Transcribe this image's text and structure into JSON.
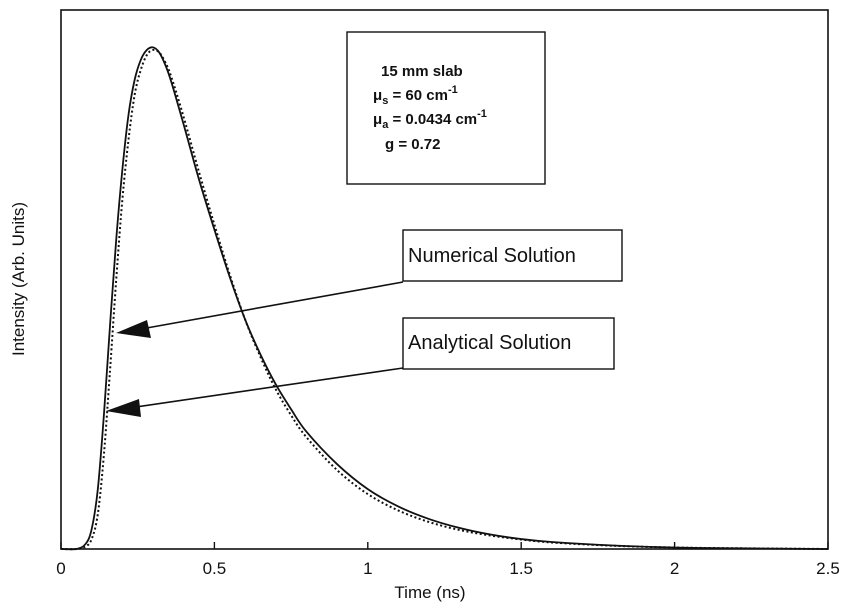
{
  "chart_data": {
    "type": "line",
    "xlabel": "Time (ns)",
    "ylabel": "Intensity (Arb. Units)",
    "xlim": [
      0,
      2.5
    ],
    "ylim": [
      0,
      1.08
    ],
    "x_ticks": [
      "0",
      "0.5",
      "1",
      "1.5",
      "2",
      "2.5"
    ],
    "grid": false,
    "series": [
      {
        "name": "Numerical Solution",
        "style": "solid",
        "x": [
          0,
          0.05,
          0.08,
          0.1,
          0.12,
          0.14,
          0.16,
          0.18,
          0.2,
          0.22,
          0.24,
          0.26,
          0.28,
          0.3,
          0.32,
          0.34,
          0.36,
          0.4,
          0.45,
          0.5,
          0.55,
          0.6,
          0.65,
          0.7,
          0.75,
          0.8,
          0.9,
          1.0,
          1.1,
          1.2,
          1.3,
          1.4,
          1.5,
          1.6,
          1.8,
          2.0,
          2.2,
          2.5
        ],
        "y": [
          0,
          0.0,
          0.01,
          0.04,
          0.12,
          0.27,
          0.45,
          0.62,
          0.76,
          0.87,
          0.94,
          0.98,
          1.0,
          1.005,
          0.995,
          0.97,
          0.935,
          0.85,
          0.74,
          0.64,
          0.545,
          0.46,
          0.39,
          0.33,
          0.28,
          0.235,
          0.17,
          0.12,
          0.085,
          0.06,
          0.042,
          0.029,
          0.02,
          0.014,
          0.007,
          0.003,
          0.0015,
          0.0
        ]
      },
      {
        "name": "Analytical Solution",
        "style": "dotted",
        "x": [
          0,
          0.05,
          0.08,
          0.1,
          0.12,
          0.14,
          0.16,
          0.18,
          0.2,
          0.22,
          0.24,
          0.26,
          0.28,
          0.3,
          0.32,
          0.34,
          0.36,
          0.4,
          0.45,
          0.5,
          0.55,
          0.6,
          0.65,
          0.7,
          0.75,
          0.8,
          0.9,
          1.0,
          1.1,
          1.2,
          1.3,
          1.4,
          1.5,
          1.6,
          1.8,
          2.0,
          2.2,
          2.5
        ],
        "y": [
          0,
          0.0,
          0.005,
          0.02,
          0.07,
          0.19,
          0.36,
          0.54,
          0.7,
          0.82,
          0.91,
          0.96,
          0.99,
          1.0,
          0.995,
          0.975,
          0.945,
          0.865,
          0.755,
          0.65,
          0.55,
          0.46,
          0.385,
          0.32,
          0.268,
          0.224,
          0.158,
          0.11,
          0.077,
          0.054,
          0.038,
          0.027,
          0.019,
          0.013,
          0.0065,
          0.003,
          0.0015,
          0.0
        ]
      }
    ],
    "info_box": {
      "line1": "15 mm slab",
      "mu_symbol": "μ",
      "line2_sub": "s",
      "line2_rest": " = 60 cm",
      "line2_sup": "-1",
      "line3_sub": "a",
      "line3_rest": " = 0.0434 cm",
      "line3_sup": "-1",
      "line4": "g = 0.72"
    },
    "callouts": {
      "numerical": "Numerical Solution",
      "analytical": "Analytical Solution"
    }
  }
}
